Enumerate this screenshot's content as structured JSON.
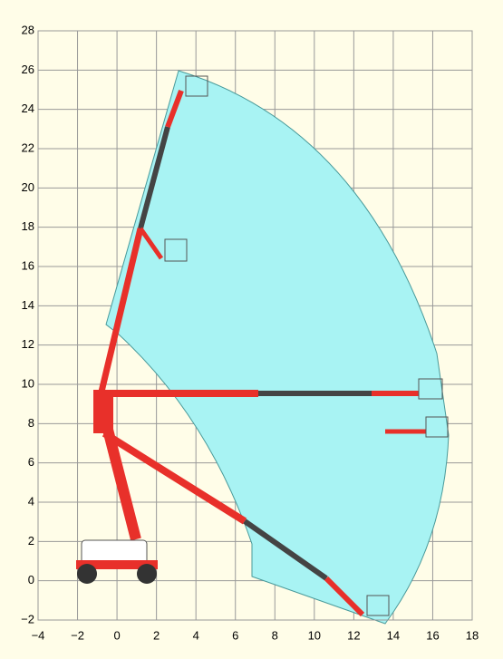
{
  "axes": {
    "xlim": [
      -4,
      18
    ],
    "ylim": [
      -2,
      28
    ],
    "xticks": [
      {
        "value": -4,
        "label": "−4"
      },
      {
        "value": -2,
        "label": "−2"
      },
      0,
      2,
      4,
      6,
      8,
      10,
      12,
      14,
      16,
      18
    ],
    "yticks": [
      {
        "value": -2,
        "label": "−2"
      },
      0,
      2,
      4,
      6,
      8,
      10,
      12,
      14,
      16,
      18,
      20,
      22,
      24,
      26,
      28
    ]
  }
}
